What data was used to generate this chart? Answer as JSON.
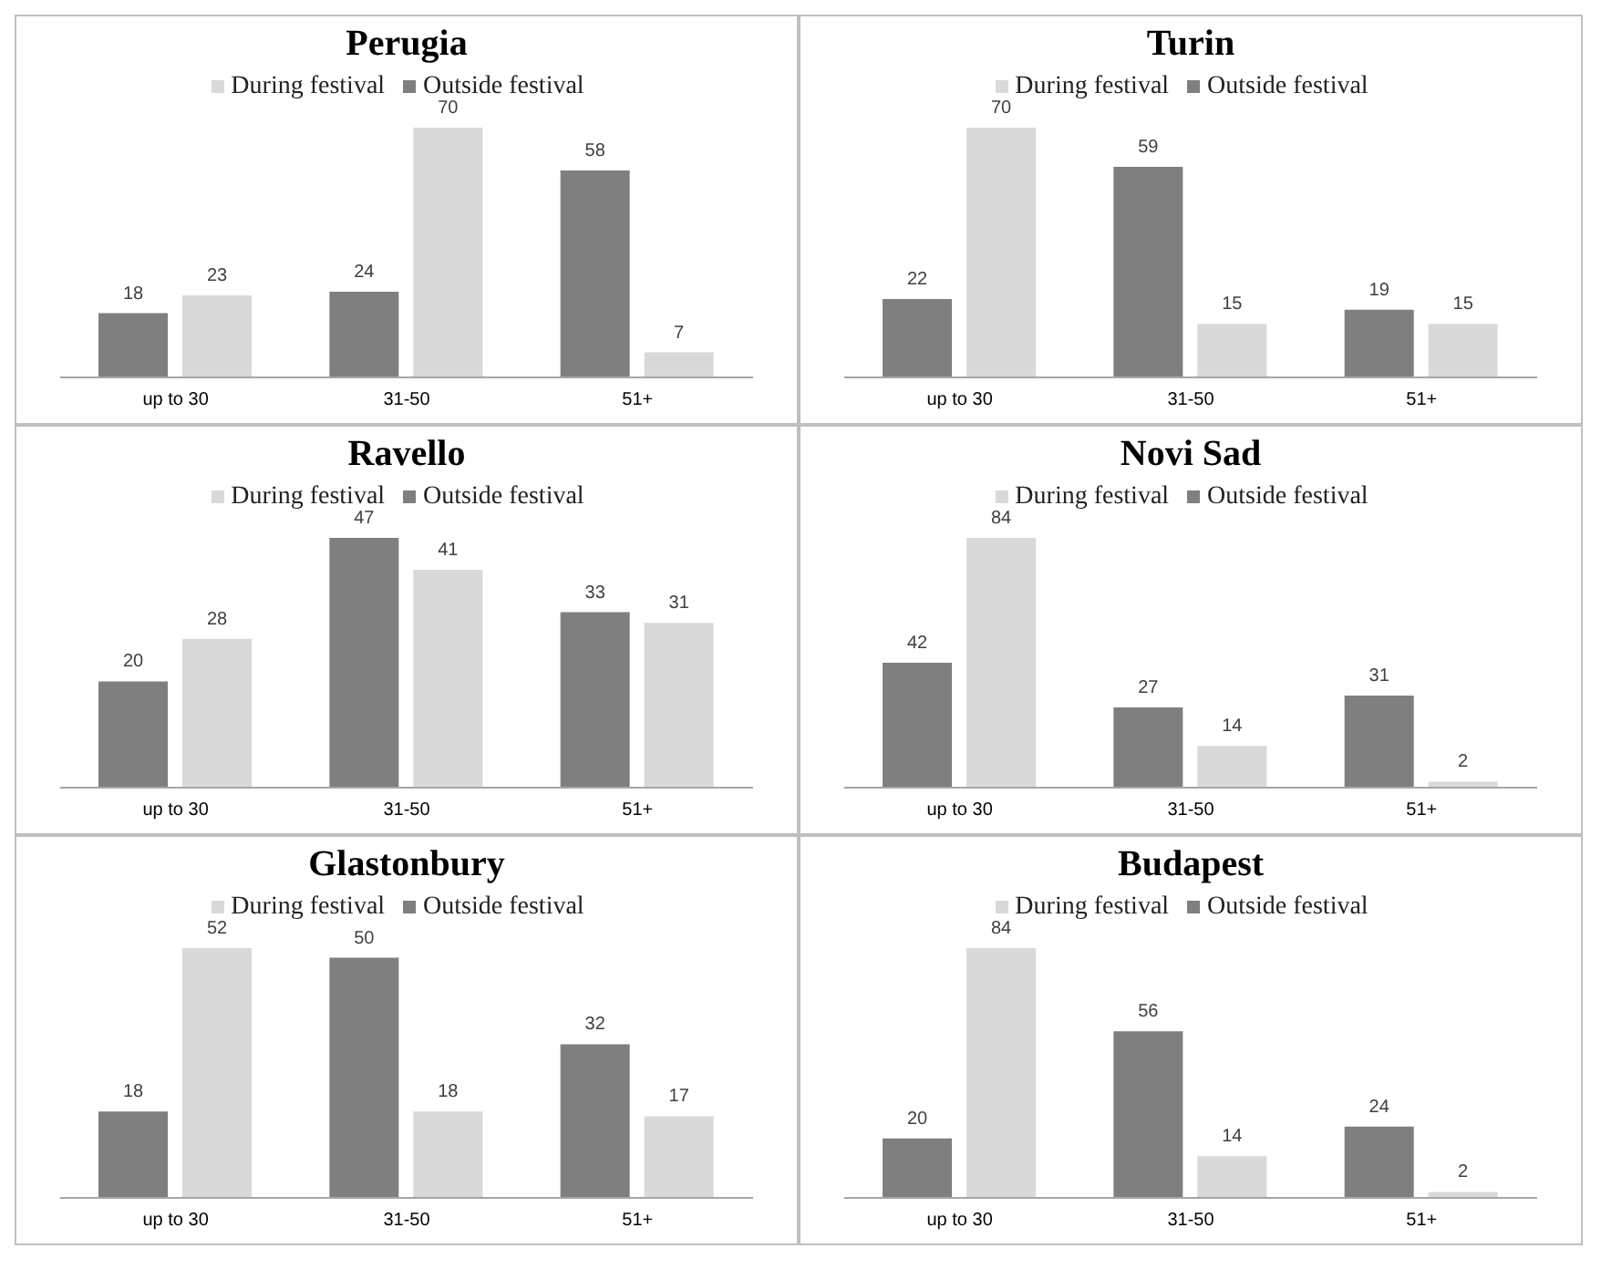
{
  "chart_data": [
    {
      "type": "bar",
      "title": "Perugia",
      "categories": [
        "up to 30",
        "31-50",
        "51+"
      ],
      "series": [
        {
          "name": "Outside festival",
          "color": "#7f7f7f",
          "values": [
            18,
            24,
            58
          ]
        },
        {
          "name": "During festival",
          "color": "#d9d9d9",
          "values": [
            23,
            70,
            7
          ]
        }
      ],
      "data_labels": true,
      "legend": "top",
      "grid": false
    },
    {
      "type": "bar",
      "title": "Turin",
      "categories": [
        "up to 30",
        "31-50",
        "51+"
      ],
      "series": [
        {
          "name": "Outside festival",
          "color": "#7f7f7f",
          "values": [
            22,
            59,
            19
          ]
        },
        {
          "name": "During festival",
          "color": "#d9d9d9",
          "values": [
            70,
            15,
            15
          ]
        }
      ],
      "data_labels": true,
      "legend": "top",
      "grid": false
    },
    {
      "type": "bar",
      "title": "Ravello",
      "categories": [
        "up to 30",
        "31-50",
        "51+"
      ],
      "series": [
        {
          "name": "Outside festival",
          "color": "#7f7f7f",
          "values": [
            20,
            47,
            33
          ]
        },
        {
          "name": "During festival",
          "color": "#d9d9d9",
          "values": [
            28,
            41,
            31
          ]
        }
      ],
      "data_labels": true,
      "legend": "top",
      "grid": false
    },
    {
      "type": "bar",
      "title": "Novi Sad",
      "categories": [
        "up to 30",
        "31-50",
        "51+"
      ],
      "series": [
        {
          "name": "Outside festival",
          "color": "#7f7f7f",
          "values": [
            42,
            27,
            31
          ]
        },
        {
          "name": "During festival",
          "color": "#d9d9d9",
          "values": [
            84,
            14,
            2
          ]
        }
      ],
      "data_labels": true,
      "legend": "top",
      "grid": false
    },
    {
      "type": "bar",
      "title": "Glastonbury",
      "categories": [
        "up to 30",
        "31-50",
        "51+"
      ],
      "series": [
        {
          "name": "Outside festival",
          "color": "#7f7f7f",
          "values": [
            18,
            50,
            32
          ]
        },
        {
          "name": "During festival",
          "color": "#d9d9d9",
          "values": [
            52,
            18,
            17
          ]
        }
      ],
      "data_labels": true,
      "legend": "top",
      "grid": false
    },
    {
      "type": "bar",
      "title": "Budapest",
      "categories": [
        "up to 30",
        "31-50",
        "51+"
      ],
      "series": [
        {
          "name": "Outside festival",
          "color": "#7f7f7f",
          "values": [
            20,
            56,
            24
          ]
        },
        {
          "name": "During festival",
          "color": "#d9d9d9",
          "values": [
            84,
            14,
            2
          ]
        }
      ],
      "data_labels": true,
      "legend": "top",
      "grid": false
    }
  ]
}
